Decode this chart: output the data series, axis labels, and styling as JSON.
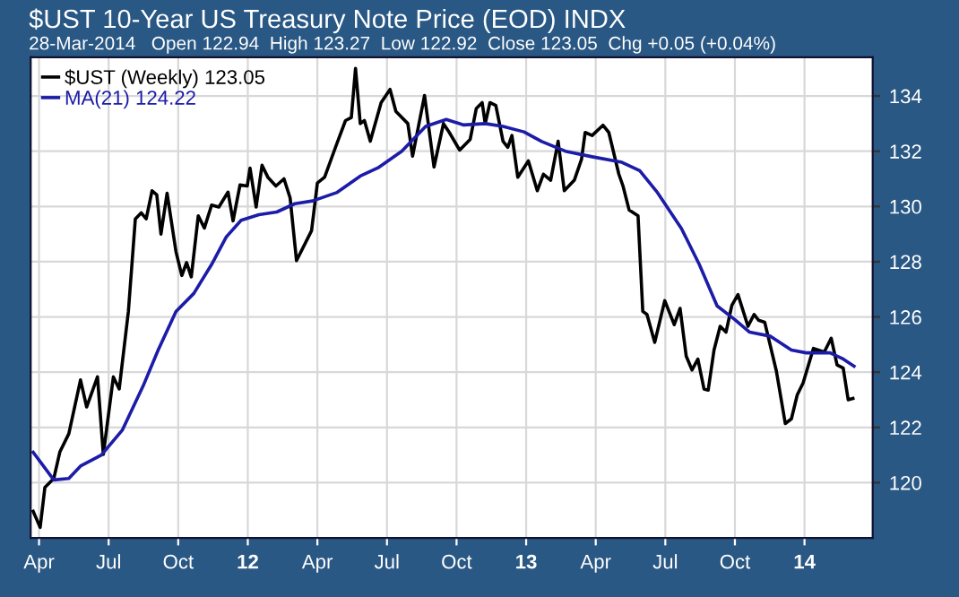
{
  "chart_data": {
    "type": "line",
    "title": "$UST 10-Year US Treasury Note Price (EOD) INDX",
    "subtitle": "28-Mar-2014   Open 122.94  High 123.27  Low 122.92  Close 123.05  Chg +0.05 (+0.04%)",
    "series": [
      {
        "name": "$UST (Weekly) 123.05",
        "color": "#000000",
        "x": [
          2011.229,
          2011.254,
          2011.271,
          2011.303,
          2011.325,
          2011.357,
          2011.399,
          2011.421,
          2011.46,
          2011.481,
          2011.517,
          2011.538,
          2011.571,
          2011.596,
          2011.617,
          2011.635,
          2011.656,
          2011.673,
          2011.688,
          2011.71,
          2011.742,
          2011.763,
          2011.78,
          2011.797,
          2011.822,
          2011.844,
          2011.87,
          2011.896,
          2011.929,
          2011.947,
          2011.972,
          2011.998,
          2012.008,
          2012.03,
          2012.051,
          2012.072,
          2012.101,
          2012.13,
          2012.152,
          2012.175,
          2012.229,
          2012.25,
          2012.276,
          2012.319,
          2012.351,
          2012.372,
          2012.387,
          2012.404,
          2012.419,
          2012.44,
          2012.479,
          2012.511,
          2012.532,
          2012.575,
          2012.592,
          2012.635,
          2012.669,
          2012.703,
          2012.724,
          2012.761,
          2012.799,
          2012.821,
          2012.842,
          2012.853,
          2012.87,
          2012.891,
          2012.917,
          2012.934,
          2012.949,
          2012.97,
          2013.008,
          2013.04,
          2013.062,
          2013.088,
          2013.115,
          2013.137,
          2013.173,
          2013.199,
          2013.212,
          2013.237,
          2013.276,
          2013.297,
          2013.333,
          2013.348,
          2013.37,
          2013.402,
          2013.419,
          2013.434,
          2013.462,
          2013.498,
          2013.532,
          2013.553,
          2013.575,
          2013.596,
          2013.617,
          2013.639,
          2013.654,
          2013.675,
          2013.697,
          2013.718,
          2013.739,
          2013.761,
          2013.797,
          2013.819,
          2013.835,
          2013.857,
          2013.899,
          2013.931,
          2013.953,
          2013.974,
          2013.995,
          2014.032,
          2014.071,
          2014.096,
          2014.117,
          2014.139,
          2014.157,
          2014.174
        ],
        "values": [
          118.96,
          118.38,
          119.83,
          120.15,
          121.12,
          121.77,
          123.72,
          122.74,
          123.83,
          121.02,
          123.83,
          123.39,
          126.2,
          129.55,
          129.77,
          129.55,
          130.57,
          130.42,
          129.0,
          130.48,
          128.36,
          127.5,
          127.97,
          127.45,
          129.66,
          129.22,
          130.05,
          129.98,
          130.52,
          129.48,
          130.78,
          130.74,
          131.39,
          129.98,
          131.49,
          131.06,
          130.74,
          131.0,
          130.31,
          128.04,
          129.12,
          130.85,
          131.06,
          132.25,
          133.11,
          133.22,
          135.0,
          133.0,
          133.11,
          132.36,
          133.76,
          134.24,
          133.44,
          133.0,
          131.82,
          134.02,
          131.43,
          133.0,
          132.68,
          132.04,
          132.43,
          133.55,
          133.76,
          133.0,
          133.76,
          133.66,
          132.36,
          132.14,
          132.57,
          131.06,
          131.65,
          130.57,
          131.17,
          130.95,
          132.36,
          130.57,
          130.95,
          131.71,
          132.68,
          132.57,
          132.94,
          132.68,
          131.17,
          130.74,
          129.87,
          129.66,
          126.2,
          126.09,
          125.08,
          126.59,
          125.72,
          126.31,
          124.58,
          124.08,
          124.47,
          123.39,
          123.35,
          124.8,
          125.66,
          125.45,
          126.42,
          126.81,
          125.66,
          126.09,
          125.88,
          125.81,
          124.04,
          122.14,
          122.31,
          123.18,
          123.61,
          124.86,
          124.73,
          125.23,
          124.26,
          124.15,
          123.0,
          123.05
        ]
      },
      {
        "name": "MA(21) 124.22",
        "color": "#1c1ca8",
        "x": [
          2011.229,
          2011.303,
          2011.357,
          2011.399,
          2011.474,
          2011.549,
          2011.624,
          2011.678,
          2011.742,
          2011.806,
          2011.87,
          2011.923,
          2011.976,
          2012.04,
          2012.104,
          2012.169,
          2012.233,
          2012.319,
          2012.404,
          2012.468,
          2012.553,
          2012.639,
          2012.713,
          2012.776,
          2012.853,
          2012.917,
          2012.992,
          2013.056,
          2013.141,
          2013.237,
          2013.344,
          2013.408,
          2013.472,
          2013.558,
          2013.622,
          2013.686,
          2013.75,
          2013.803,
          2013.878,
          2013.953,
          2014.006,
          2014.092,
          2014.135,
          2014.178
        ],
        "values": [
          121.1,
          120.1,
          120.15,
          120.6,
          121.0,
          121.9,
          123.5,
          124.8,
          126.2,
          126.85,
          127.9,
          128.9,
          129.5,
          129.7,
          129.8,
          130.1,
          130.2,
          130.5,
          131.1,
          131.4,
          132.0,
          132.9,
          133.15,
          132.95,
          133.0,
          132.9,
          132.7,
          132.35,
          132.0,
          131.8,
          131.6,
          131.3,
          130.5,
          129.2,
          127.9,
          126.4,
          125.9,
          125.45,
          125.3,
          124.8,
          124.7,
          124.7,
          124.5,
          124.22
        ]
      }
    ],
    "xlim": [
      2011.22,
      2014.245
    ],
    "xticks": [
      {
        "value": 2011.25,
        "label": "Apr"
      },
      {
        "value": 2011.5,
        "label": "Jul"
      },
      {
        "value": 2011.75,
        "label": "Oct"
      },
      {
        "value": 2012,
        "label": "12"
      },
      {
        "value": 2012.25,
        "label": "Apr"
      },
      {
        "value": 2012.5,
        "label": "Jul"
      },
      {
        "value": 2012.75,
        "label": "Oct"
      },
      {
        "value": 2013,
        "label": "13"
      },
      {
        "value": 2013.25,
        "label": "Apr"
      },
      {
        "value": 2013.5,
        "label": "Jul"
      },
      {
        "value": 2013.75,
        "label": "Oct"
      },
      {
        "value": 2014,
        "label": "14"
      }
    ],
    "ylim": [
      118.0,
      135.4
    ],
    "yticks": [
      120,
      122,
      124,
      126,
      128,
      130,
      132,
      134
    ],
    "grid": true,
    "legend": "top left",
    "line_style": "solid",
    "marker": "none"
  }
}
